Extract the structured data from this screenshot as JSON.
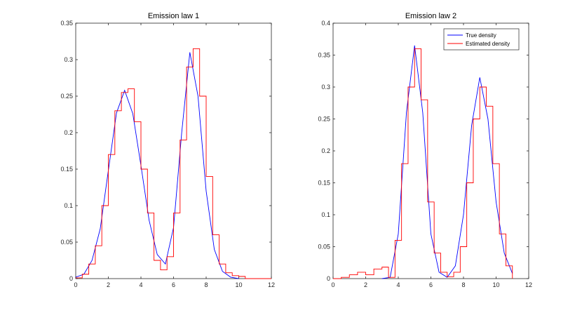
{
  "chart_data": [
    {
      "type": "line",
      "title": "Emission law 1",
      "xlim": [
        0,
        12
      ],
      "ylim": [
        0,
        0.35
      ],
      "xticks": [
        0,
        2,
        4,
        6,
        8,
        10,
        12
      ],
      "yticks": [
        0,
        0.05,
        0.1,
        0.15,
        0.2,
        0.25,
        0.3,
        0.35
      ],
      "xtick_labels": [
        "0",
        "2",
        "4",
        "6",
        "8",
        "10",
        "12"
      ],
      "ytick_labels": [
        "0",
        "0.05",
        "0.1",
        "0.15",
        "0.2",
        "0.25",
        "0.3",
        "0.35"
      ],
      "grid": false,
      "series": [
        {
          "name": "True density",
          "style": "line",
          "color": "#0000ff",
          "x": [
            0,
            0.5,
            1,
            1.5,
            2,
            2.5,
            3,
            3.5,
            4,
            4.5,
            5,
            5.5,
            6,
            6.5,
            7,
            7.5,
            8,
            8.5,
            9,
            9.5,
            10
          ],
          "y": [
            0.002,
            0.006,
            0.025,
            0.068,
            0.148,
            0.227,
            0.258,
            0.226,
            0.155,
            0.08,
            0.033,
            0.02,
            0.07,
            0.2,
            0.31,
            0.25,
            0.12,
            0.04,
            0.01,
            0.002,
            0.0
          ]
        },
        {
          "name": "Estimated density",
          "style": "step",
          "color": "#ff0000",
          "x": [
            0,
            0.4,
            0.8,
            1.2,
            1.6,
            2.0,
            2.4,
            2.8,
            3.2,
            3.6,
            4.0,
            4.4,
            4.8,
            5.2,
            5.6,
            6.0,
            6.4,
            6.8,
            7.2,
            7.6,
            8.0,
            8.4,
            8.8,
            9.2,
            9.6,
            10.0,
            10.4,
            12.0
          ],
          "y": [
            0.001,
            0.006,
            0.02,
            0.045,
            0.1,
            0.17,
            0.23,
            0.255,
            0.26,
            0.215,
            0.15,
            0.09,
            0.025,
            0.012,
            0.03,
            0.09,
            0.19,
            0.29,
            0.315,
            0.25,
            0.14,
            0.06,
            0.02,
            0.008,
            0.004,
            0.003,
            0.0,
            0.0
          ]
        }
      ]
    },
    {
      "type": "line",
      "title": "Emission law 2",
      "xlim": [
        0,
        12
      ],
      "ylim": [
        0,
        0.4
      ],
      "xticks": [
        0,
        2,
        4,
        6,
        8,
        10,
        12
      ],
      "yticks": [
        0,
        0.05,
        0.1,
        0.15,
        0.2,
        0.25,
        0.3,
        0.35,
        0.4
      ],
      "xtick_labels": [
        "0",
        "2",
        "4",
        "6",
        "8",
        "10",
        "12"
      ],
      "ytick_labels": [
        "0",
        "0.05",
        "0.1",
        "0.15",
        "0.2",
        "0.25",
        "0.3",
        "0.35",
        "0.4"
      ],
      "grid": false,
      "legend": {
        "position": "top-right",
        "entries": [
          "True density",
          "Estimated density"
        ]
      },
      "series": [
        {
          "name": "True density",
          "style": "line",
          "color": "#0000ff",
          "x": [
            3.0,
            3.5,
            4.0,
            4.5,
            5.0,
            5.5,
            6.0,
            6.5,
            7.0,
            7.5,
            8.0,
            8.5,
            9.0,
            9.5,
            10.0,
            10.5,
            11.0
          ],
          "y": [
            0.0,
            0.002,
            0.07,
            0.26,
            0.365,
            0.26,
            0.07,
            0.01,
            0.002,
            0.02,
            0.1,
            0.24,
            0.315,
            0.25,
            0.12,
            0.04,
            0.008
          ]
        },
        {
          "name": "Estimated density",
          "style": "step",
          "color": "#ff0000",
          "x": [
            0.0,
            0.5,
            1.0,
            1.5,
            2.0,
            2.5,
            3.0,
            3.4,
            3.8,
            4.2,
            4.6,
            5.0,
            5.4,
            5.8,
            6.2,
            6.6,
            7.0,
            7.4,
            7.8,
            8.2,
            8.6,
            9.0,
            9.4,
            9.8,
            10.2,
            10.6,
            11.0
          ],
          "y": [
            0.0,
            0.002,
            0.006,
            0.01,
            0.006,
            0.015,
            0.018,
            0.002,
            0.06,
            0.18,
            0.3,
            0.36,
            0.28,
            0.12,
            0.04,
            0.01,
            0.003,
            0.01,
            0.05,
            0.15,
            0.25,
            0.3,
            0.27,
            0.18,
            0.07,
            0.02,
            0.0
          ]
        }
      ]
    }
  ]
}
